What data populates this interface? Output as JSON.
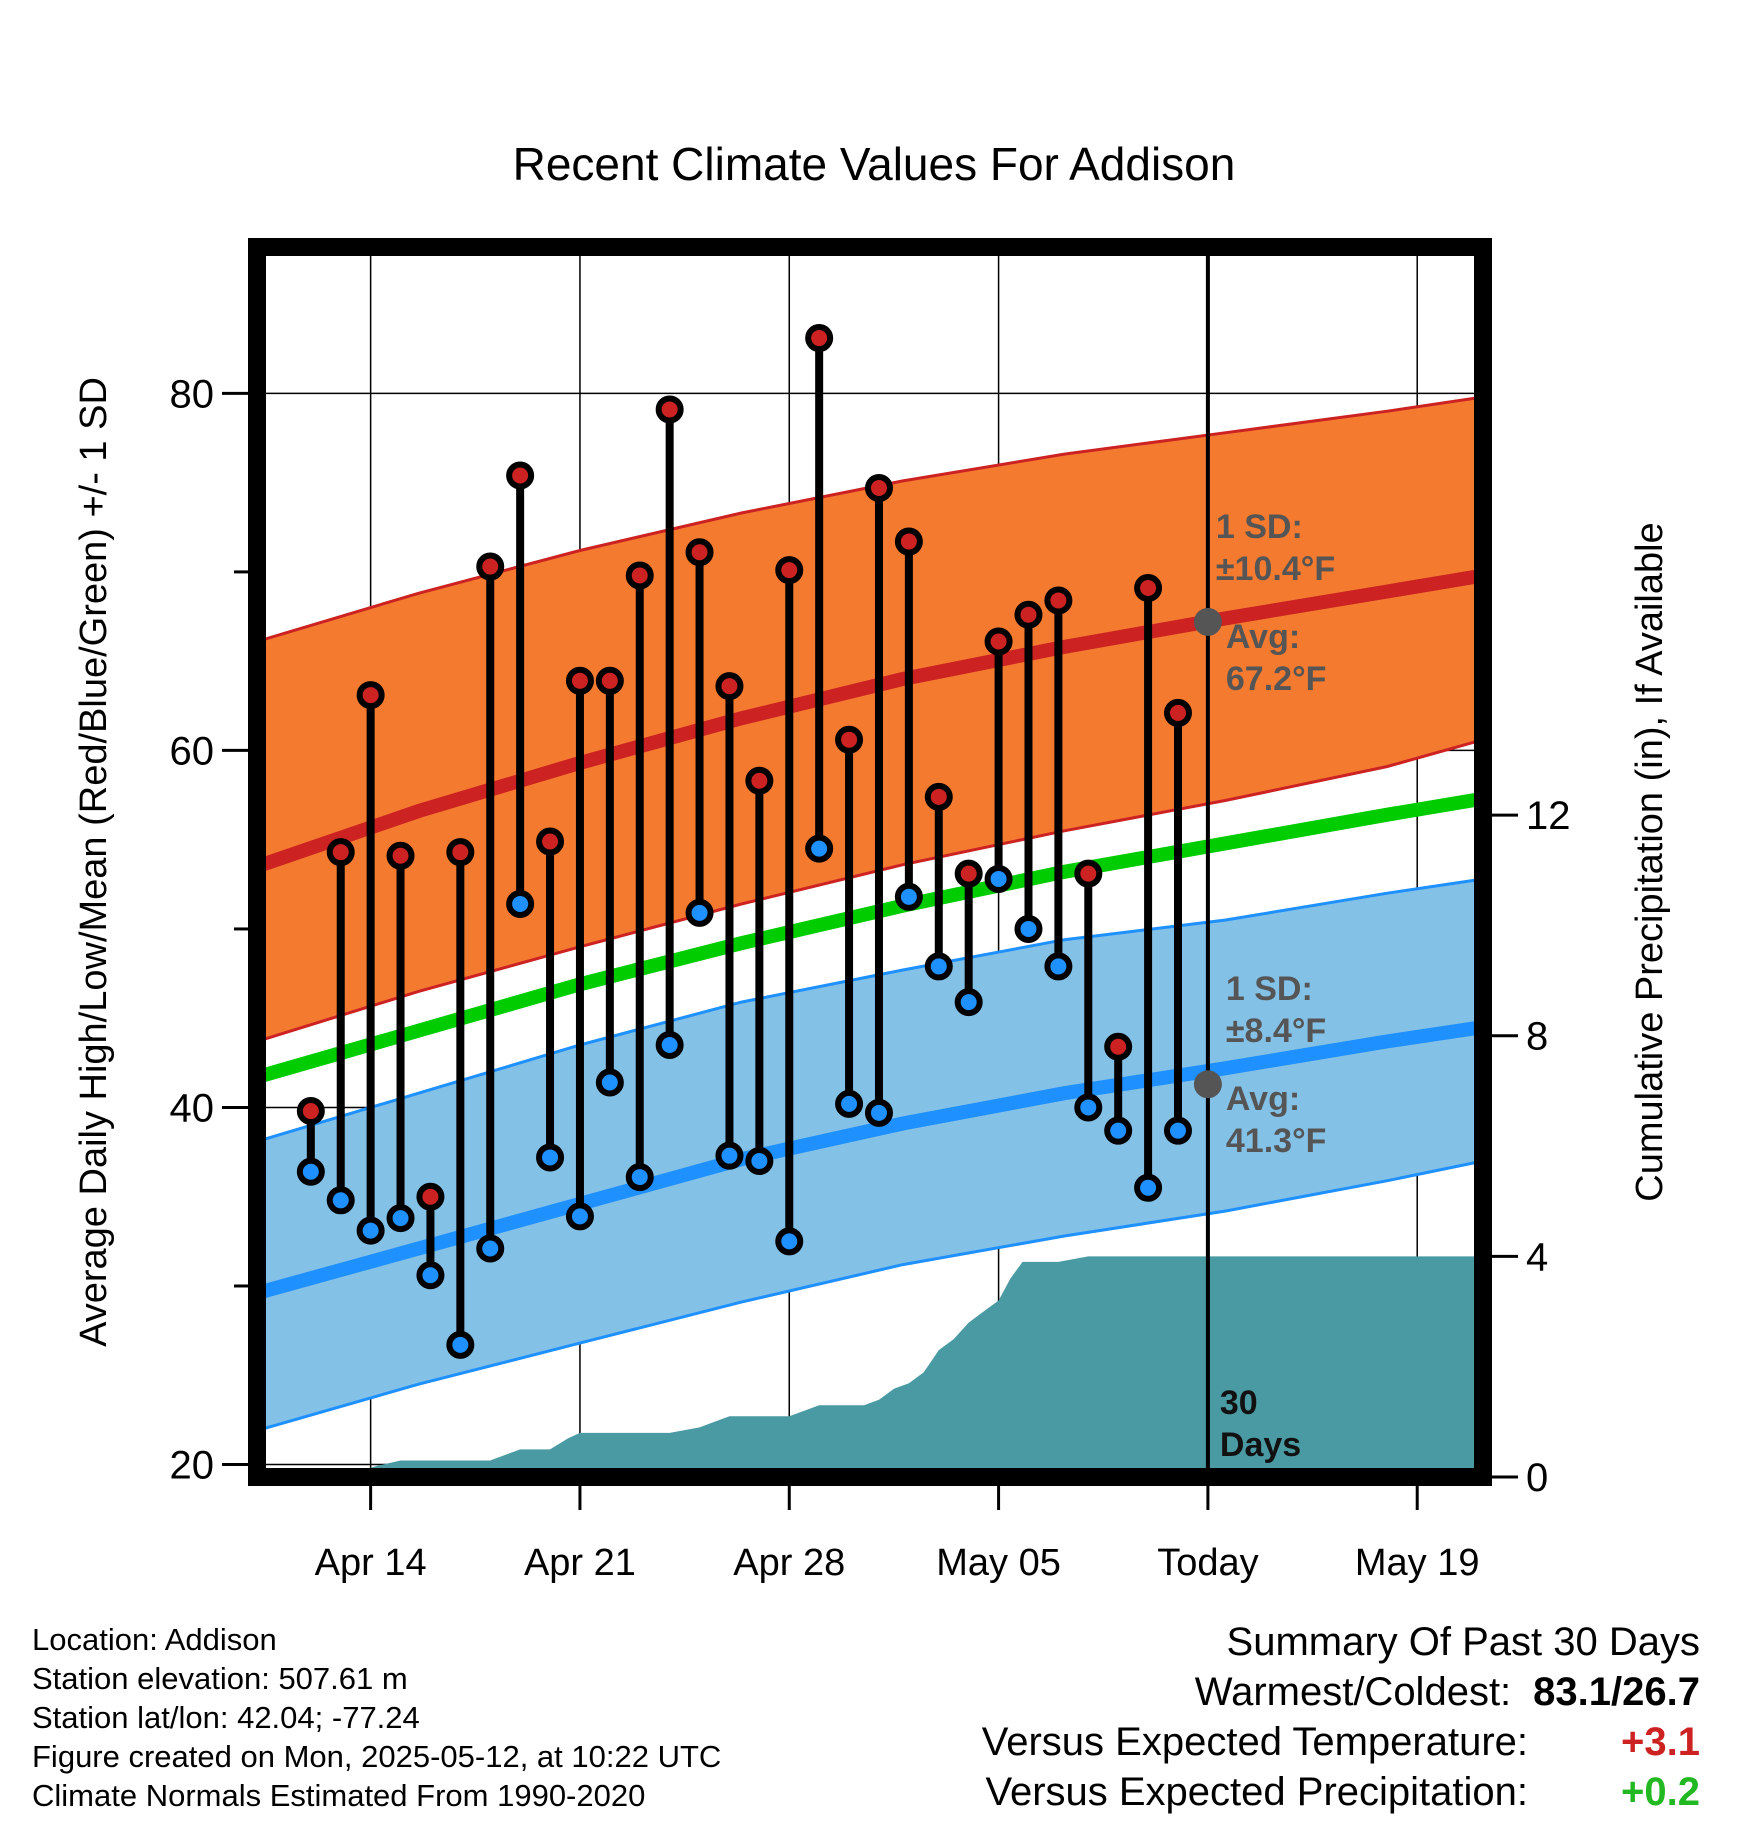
{
  "chart_data": {
    "type": "line",
    "title": "Recent Climate Values For Addison",
    "xlabel": "Day",
    "ylabel_left": "Average Daily High/Low/Mean (Red/Blue/Green) +/- 1 SD",
    "ylabel_right": "Cumulative Precipitation (in), If Available",
    "x_ticks": [
      {
        "day": 14,
        "label": "Apr 14"
      },
      {
        "day": 21,
        "label": "Apr 21"
      },
      {
        "day": 28,
        "label": "Apr 28"
      },
      {
        "day": 35,
        "label": "May 05"
      },
      {
        "day": 42,
        "label": "Today"
      },
      {
        "day": 49,
        "label": "May 19"
      }
    ],
    "x_range_days": [
      10.2,
      51.2
    ],
    "today_day": 42,
    "y_left_range": [
      19.3,
      88.2
    ],
    "y_left_ticks": [
      20,
      40,
      60,
      80
    ],
    "y_left_minor_ticks": [
      30,
      50,
      70
    ],
    "y_right_range": [
      0,
      22.3
    ],
    "y_right_ticks": [
      0,
      4,
      8,
      12
    ],
    "grid": true,
    "normals": {
      "x": [
        10.2,
        15.6,
        21,
        26.4,
        31.8,
        37.2,
        42.6,
        48,
        51.2
      ],
      "high_mean": [
        53.5,
        56.6,
        59.3,
        61.8,
        64.0,
        65.8,
        67.4,
        68.9,
        69.8
      ],
      "high_upper": [
        66.1,
        68.8,
        71.2,
        73.3,
        75.1,
        76.6,
        77.8,
        79.0,
        79.8
      ],
      "high_lower": [
        43.7,
        46.5,
        49.0,
        51.4,
        53.6,
        55.5,
        57.2,
        59.1,
        60.6
      ],
      "mean": [
        41.7,
        44.3,
        46.9,
        49.2,
        51.3,
        53.2,
        54.8,
        56.4,
        57.3
      ],
      "low_mean": [
        29.6,
        32.1,
        34.6,
        37.1,
        39.1,
        40.8,
        42.2,
        43.7,
        44.5
      ],
      "low_upper": [
        38.1,
        40.8,
        43.5,
        45.9,
        47.7,
        49.4,
        50.5,
        52.0,
        52.8
      ],
      "low_lower": [
        21.9,
        24.5,
        26.8,
        29.1,
        31.2,
        32.8,
        34.2,
        35.9,
        37.0
      ]
    },
    "series": [
      {
        "name": "High",
        "days": [
          12,
          13,
          14,
          15,
          16,
          17,
          18,
          19,
          20,
          21,
          22,
          23,
          24,
          25,
          26,
          27,
          28,
          29,
          30,
          31,
          32,
          33,
          34,
          35,
          36,
          37,
          38,
          39,
          40,
          41
        ],
        "values": [
          39.8,
          54.3,
          63.1,
          54.1,
          35.0,
          54.3,
          70.3,
          75.4,
          54.9,
          63.9,
          63.9,
          69.8,
          79.1,
          71.1,
          63.6,
          58.3,
          70.1,
          83.1,
          60.6,
          74.7,
          71.7,
          57.4,
          53.1,
          66.1,
          67.6,
          68.4,
          53.1,
          43.4,
          69.1,
          62.1
        ]
      },
      {
        "name": "Low",
        "days": [
          12,
          13,
          14,
          15,
          16,
          17,
          18,
          19,
          20,
          21,
          22,
          23,
          24,
          25,
          26,
          27,
          28,
          29,
          30,
          31,
          32,
          33,
          34,
          35,
          36,
          37,
          38,
          39,
          40,
          41
        ],
        "values": [
          36.4,
          34.8,
          33.1,
          33.8,
          30.6,
          26.7,
          32.1,
          51.4,
          37.2,
          33.9,
          41.4,
          36.1,
          43.5,
          50.9,
          37.3,
          37.0,
          32.5,
          54.5,
          40.2,
          39.7,
          51.8,
          47.9,
          45.9,
          52.8,
          50.0,
          47.9,
          40.0,
          38.7,
          35.5,
          38.7
        ]
      },
      {
        "name": "Cumulative Precipitation",
        "axis": "right",
        "x": [
          10.2,
          12.2,
          12.8,
          13.6,
          14.2,
          15.0,
          16.0,
          17.0,
          18.0,
          19.0,
          19.5,
          20.0,
          20.6,
          21.0,
          21.5,
          22.0,
          23.0,
          24.0,
          25.0,
          25.5,
          26.0,
          26.5,
          27.0,
          27.5,
          28.0,
          28.5,
          29.0,
          30.0,
          30.5,
          31.0,
          31.5,
          32.0,
          32.5,
          33.0,
          33.5,
          34.0,
          34.5,
          35.0,
          35.4,
          35.8,
          36.0,
          37.0,
          38.0,
          39.0,
          40.0,
          41.0,
          42.0,
          51.2
        ],
        "values": [
          0,
          0,
          0.05,
          0.1,
          0.2,
          0.3,
          0.3,
          0.3,
          0.3,
          0.5,
          0.5,
          0.5,
          0.7,
          0.8,
          0.8,
          0.8,
          0.8,
          0.8,
          0.9,
          1.0,
          1.1,
          1.1,
          1.1,
          1.1,
          1.1,
          1.2,
          1.3,
          1.3,
          1.3,
          1.4,
          1.6,
          1.7,
          1.9,
          2.3,
          2.5,
          2.8,
          3.0,
          3.2,
          3.6,
          3.9,
          3.9,
          3.9,
          4.0,
          4.0,
          4.0,
          4.0,
          4.0,
          4.0
        ]
      }
    ],
    "annotations": {
      "high_sd_line1": "1 SD:",
      "high_sd_line2": "±10.4°F",
      "high_avg_line1": "Avg:",
      "high_avg_line2": "67.2°F",
      "high_avg_value": 67.2,
      "low_sd_line1": "1 SD:",
      "low_sd_line2": "±8.4°F",
      "low_avg_line1": "Avg:",
      "low_avg_line2": "41.3°F",
      "low_avg_value": 41.3,
      "days_line1": "30",
      "days_line2": "Days"
    },
    "colors": {
      "high": "#cc2222",
      "high_band": "#f47a30",
      "mean": "#00cc00",
      "low": "#1e90ff",
      "low_band": "#84c1e7",
      "precip": "#4a9aa3",
      "marker_edge": "#000000",
      "avg_marker": "#555555"
    }
  },
  "footer": {
    "location": "Location: Addison",
    "elevation": "Station elevation: 507.61 m",
    "latlon": "Station lat/lon: 42.04; -77.24",
    "created": "Figure created on Mon, 2025-05-12, at 10:22 UTC",
    "normals": "Climate Normals Estimated From 1990-2020"
  },
  "summary": {
    "title": "Summary Of Past 30 Days",
    "warmest_label": "Warmest/Coldest:",
    "warmest_value": "83.1/26.7",
    "temp_label": "Versus Expected Temperature:",
    "temp_value": "+3.1",
    "precip_label": "Versus Expected Precipitation:",
    "precip_value": "+0.2"
  }
}
